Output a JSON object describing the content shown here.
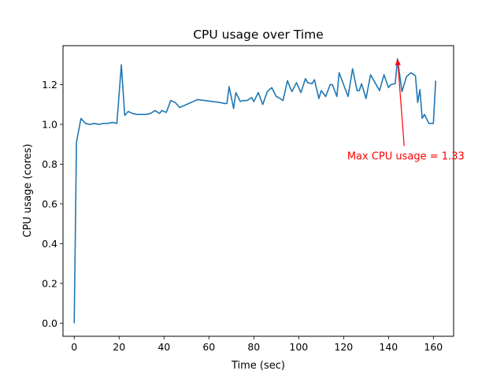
{
  "chart_data": {
    "type": "line",
    "title": "CPU usage over Time",
    "xlabel": "Time (sec)",
    "ylabel": "CPU usage (cores)",
    "xlim": [
      -5,
      169
    ],
    "ylim": [
      -0.066,
      1.396
    ],
    "xticks": [
      0,
      20,
      40,
      60,
      80,
      100,
      120,
      140,
      160
    ],
    "yticks": [
      0.0,
      0.2,
      0.4,
      0.6,
      0.8,
      1.0,
      1.2
    ],
    "ytick_labels": [
      "0.0",
      "0.2",
      "0.4",
      "0.6",
      "0.8",
      "1.0",
      "1.2"
    ],
    "grid": false,
    "line_color": "#1f77b4",
    "series": [
      {
        "x": [
          0,
          1,
          3,
          5,
          7,
          9,
          11,
          13,
          15,
          17,
          19,
          21,
          22.5,
          24,
          26,
          28,
          30,
          32,
          34,
          36,
          38,
          39,
          41,
          43,
          45,
          47,
          55,
          65,
          67,
          68,
          69,
          71,
          72,
          74,
          75,
          77,
          79,
          80,
          82,
          84,
          86,
          88,
          90,
          91,
          93,
          95,
          96,
          97,
          99,
          101,
          103,
          104,
          106,
          107,
          109,
          110,
          112,
          114,
          115,
          117,
          118,
          120,
          122,
          124,
          126,
          127,
          128,
          130,
          132,
          134,
          136,
          138,
          140,
          141,
          143,
          144,
          146,
          148,
          150,
          152,
          153,
          154,
          155,
          156,
          158,
          160,
          161
        ],
        "y": [
          0.0,
          0.91,
          1.03,
          1.005,
          1.0,
          1.005,
          1.0,
          1.005,
          1.005,
          1.01,
          1.005,
          1.3,
          1.045,
          1.065,
          1.055,
          1.05,
          1.05,
          1.05,
          1.055,
          1.07,
          1.055,
          1.07,
          1.06,
          1.12,
          1.11,
          1.085,
          1.125,
          1.11,
          1.105,
          1.105,
          1.19,
          1.08,
          1.16,
          1.115,
          1.12,
          1.12,
          1.135,
          1.115,
          1.16,
          1.1,
          1.165,
          1.185,
          1.14,
          1.135,
          1.12,
          1.22,
          1.19,
          1.165,
          1.21,
          1.16,
          1.23,
          1.21,
          1.205,
          1.225,
          1.13,
          1.17,
          1.14,
          1.2,
          1.2,
          1.14,
          1.26,
          1.2,
          1.14,
          1.28,
          1.17,
          1.17,
          1.205,
          1.13,
          1.25,
          1.21,
          1.17,
          1.25,
          1.185,
          1.2,
          1.205,
          1.33,
          1.165,
          1.24,
          1.26,
          1.245,
          1.11,
          1.175,
          1.03,
          1.05,
          1.005,
          1.005,
          1.22
        ]
      }
    ],
    "annotation": {
      "text": "Max CPU usage = 1.33",
      "color": "#ff0000",
      "point": [
        144,
        1.33
      ],
      "text_anchor_point": [
        147,
        0.84
      ]
    }
  }
}
